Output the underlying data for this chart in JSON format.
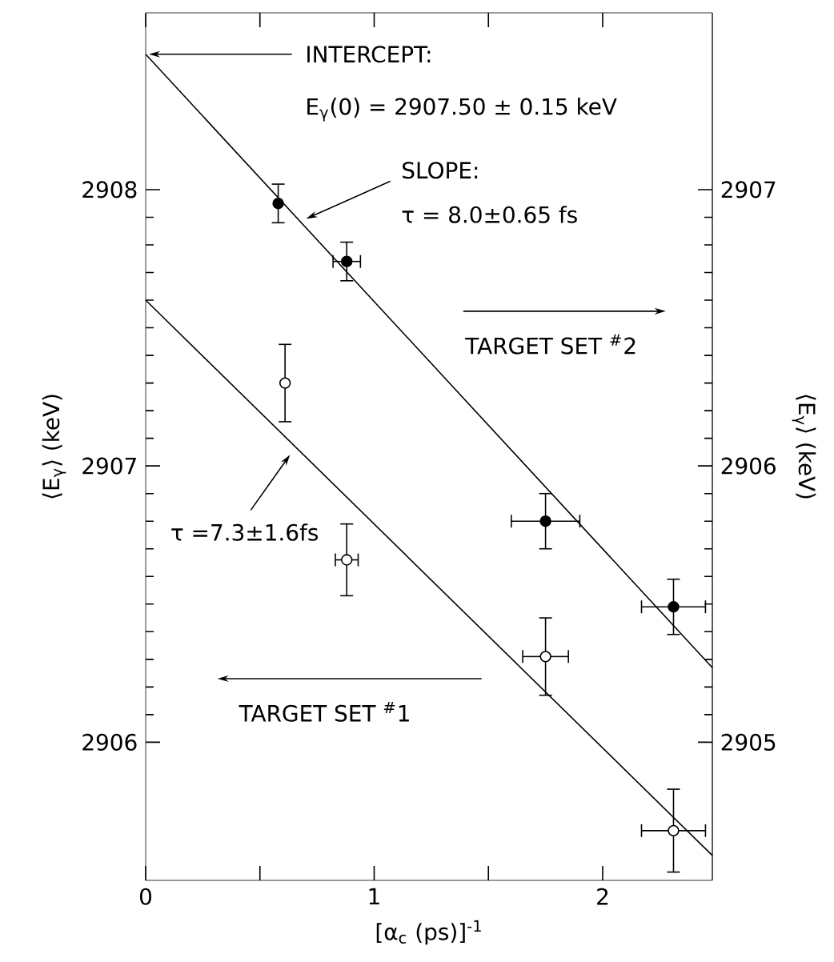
{
  "chart_data": {
    "type": "scatter",
    "xlabel": "[α$_{c}$  (ps)]$^{-1}$",
    "ylabel": "⟨E$_{γ}$⟩   (keV)",
    "y2label": "⟨E$_{γ}$⟩   (keV)",
    "xlim": [
      0,
      2.48
    ],
    "ylim": [
      2905.5,
      2908.64
    ],
    "y2lim": [
      2904.5,
      2907.64
    ],
    "xticks": [
      0,
      {
        "value": 0.5,
        "label": null
      },
      1,
      {
        "value": 1.5,
        "label": null
      },
      2
    ],
    "yticks": [
      2906,
      2907,
      2908
    ],
    "y2ticks": [
      2905,
      2906,
      2907
    ],
    "line_style": "solid",
    "series": [
      {
        "marker": "circle",
        "color": "#000000",
        "x": [
          0.58,
          0.88,
          1.75,
          2.31
        ],
        "values": [
          2907.95,
          2907.74,
          2906.8,
          2906.49
        ],
        "errors": [
          0.07,
          0.07,
          0.1,
          0.1
        ],
        "xerrors": [
          null,
          0.06,
          0.15,
          0.14
        ]
      },
      {
        "marker": "circle",
        "color": "#000000",
        "x": [
          0.61,
          0.88,
          1.75,
          2.31
        ],
        "values": [
          2907.3,
          2906.66,
          2906.31,
          2905.68
        ],
        "errors": [
          0.14,
          0.13,
          0.14,
          0.15
        ],
        "xerrors": [
          null,
          0.05,
          0.1,
          0.14
        ]
      },
      {
        "type": "line",
        "marker": "none",
        "color": "#000000",
        "x": [
          0,
          2.48
        ],
        "values": [
          2908.49,
          2906.27
        ]
      },
      {
        "type": "line",
        "marker": "none",
        "color": "#000000",
        "x": [
          0,
          2.48
        ],
        "values": [
          2907.6,
          2905.59
        ]
      }
    ],
    "annotations": [
      {
        "text": "INTERCEPT:",
        "x": 0,
        "y": 2908.49
      },
      "E$_{γ}$(0) = 2907.50 ± 0.15 keV",
      {
        "text": "SLOPE:",
        "x": 0.69,
        "y": 2907.89
      },
      "τ = 8.0±0.65 fs",
      {
        "text": "τ =7.3±1.6fs",
        "x": 0.64,
        "y": 2907.05
      },
      "TARGET SET $^{#}$2",
      "TARGET SET $^{#}$1"
    ]
  }
}
